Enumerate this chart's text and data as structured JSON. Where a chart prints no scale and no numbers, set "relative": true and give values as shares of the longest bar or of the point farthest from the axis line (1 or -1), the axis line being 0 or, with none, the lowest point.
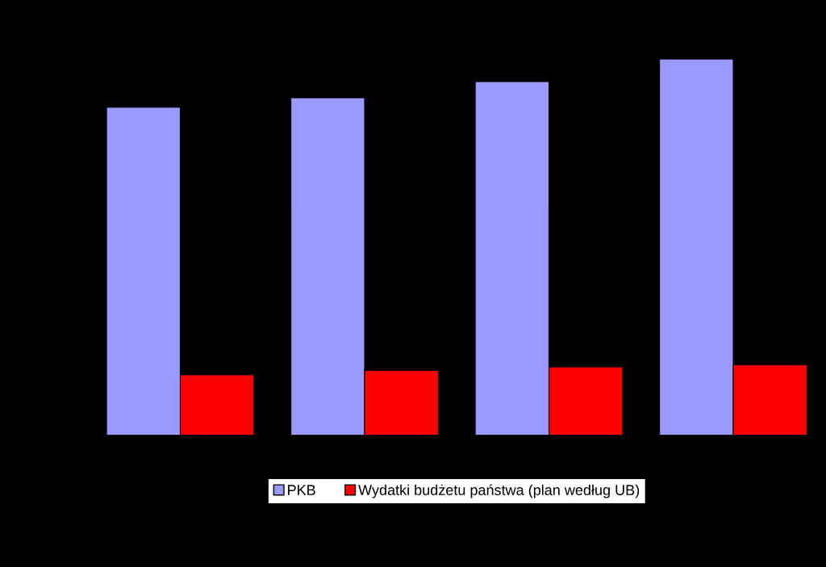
{
  "chart_data": {
    "type": "bar",
    "relative": true,
    "categories": [
      null,
      null,
      null,
      null
    ],
    "series": [
      {
        "name": "PKB",
        "color": "#9999ff",
        "values": [
          0.872,
          0.897,
          0.94,
          1.0
        ]
      },
      {
        "name": "Wydatki budżetu państwa (plan według UB)",
        "color": "#ff0000",
        "values": [
          0.161,
          0.173,
          0.182,
          0.188
        ]
      }
    ],
    "legend": "bottom",
    "grid": false
  }
}
